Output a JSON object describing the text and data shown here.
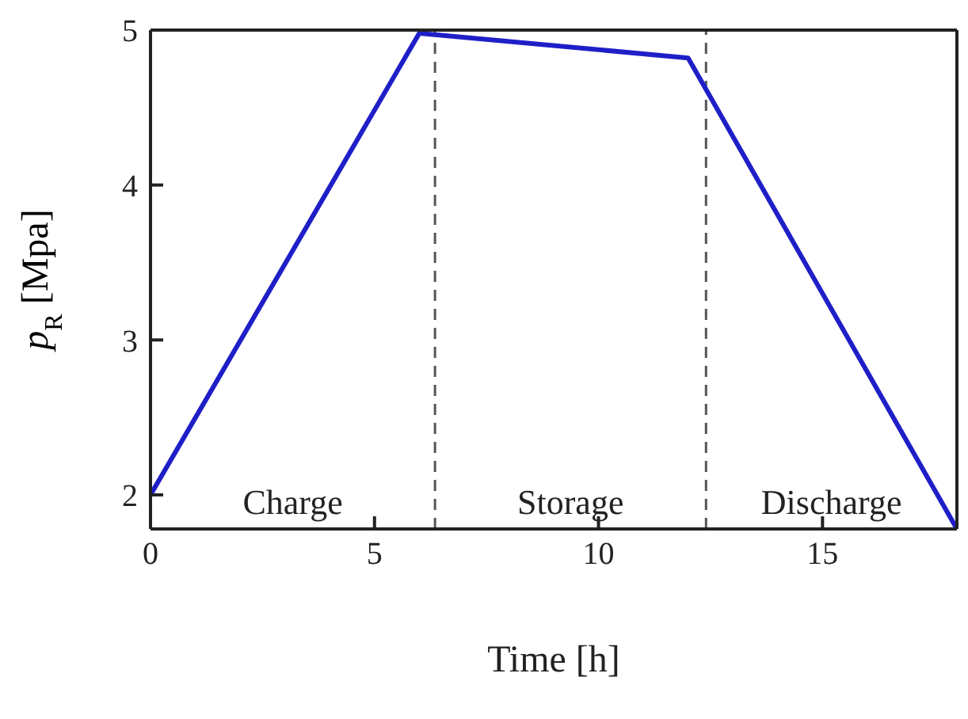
{
  "chart_data": {
    "type": "line",
    "xlabel": "Time [h]",
    "ylabel": "p$_{R}$ [Mpa]",
    "x": [
      0,
      6,
      12,
      18
    ],
    "series": [
      {
        "color": "#1f1fc8",
        "values": [
          2,
          4.98,
          4.82,
          1.78
        ]
      }
    ],
    "xlim": [
      0,
      18
    ],
    "xticks": [
      0,
      5,
      10,
      15
    ],
    "ylim": [
      1.78,
      5
    ],
    "yticks": [
      2,
      3,
      4,
      5
    ],
    "marker": "none",
    "line_style": "solid",
    "ref_lines": [
      {
        "axis": "x",
        "value": 6.35,
        "color": "#555555",
        "line_style": "dashed"
      },
      {
        "axis": "x",
        "value": 12.4,
        "color": "#555555",
        "line_style": "dashed"
      }
    ],
    "annotations": [
      "Charge",
      "Storage",
      "Discharge"
    ]
  }
}
